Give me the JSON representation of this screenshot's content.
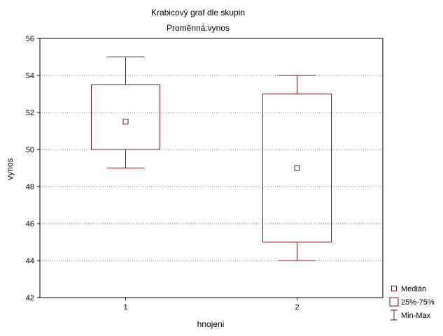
{
  "chart_data": {
    "type": "boxplot",
    "title": "Krabicový graf dle skupin",
    "subtitle": "Proměnná:vynos",
    "xlabel": "hnojeni",
    "ylabel": "vynos",
    "ylim": [
      42,
      56
    ],
    "yticks": [
      42,
      44,
      46,
      48,
      50,
      52,
      54,
      56
    ],
    "grid": true,
    "color": "#7b1113",
    "categories": [
      "1",
      "2"
    ],
    "boxes": [
      {
        "category": "1",
        "min": 49,
        "q1": 50,
        "median": 51.5,
        "q3": 53.5,
        "max": 55
      },
      {
        "category": "2",
        "min": 44,
        "q1": 45,
        "median": 49,
        "q3": 53,
        "max": 54
      }
    ],
    "legend": {
      "position": "bottom-right",
      "items": [
        {
          "symbol": "median-marker",
          "label": "Medián"
        },
        {
          "symbol": "box",
          "label": "25%-75%"
        },
        {
          "symbol": "whisker",
          "label": "Min-Max"
        }
      ]
    }
  }
}
